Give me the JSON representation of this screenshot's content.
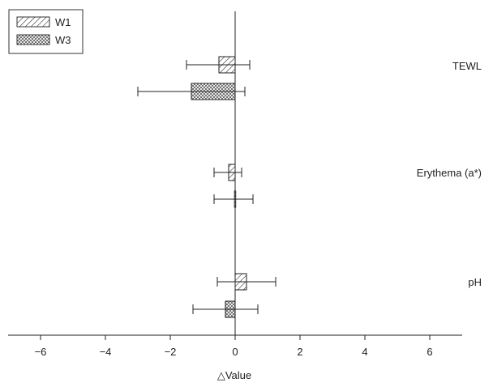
{
  "chart_data": {
    "type": "bar",
    "orientation": "horizontal",
    "xlabel": "△Value",
    "xlim": [
      -7,
      7
    ],
    "xticks": [
      -6,
      -4,
      -2,
      0,
      2,
      4,
      6
    ],
    "xtick_labels": [
      "−6",
      "−4",
      "−2",
      "0",
      "2",
      "4",
      "6"
    ],
    "categories": [
      "TEWL",
      "Erythema (a*)",
      "pH"
    ],
    "series": [
      {
        "name": "W1",
        "pattern": "diagonal-hatch",
        "values": [
          -0.5,
          -0.2,
          0.35
        ],
        "err_low": [
          -1.5,
          -0.65,
          -0.55
        ],
        "err_high": [
          0.45,
          0.2,
          1.25
        ]
      },
      {
        "name": "W3",
        "pattern": "crosshatch",
        "values": [
          -1.35,
          -0.02,
          -0.3
        ],
        "err_low": [
          -3.0,
          -0.65,
          -1.3
        ],
        "err_high": [
          0.3,
          0.55,
          0.7
        ]
      }
    ],
    "legend_position": "top-left",
    "grid": false
  }
}
